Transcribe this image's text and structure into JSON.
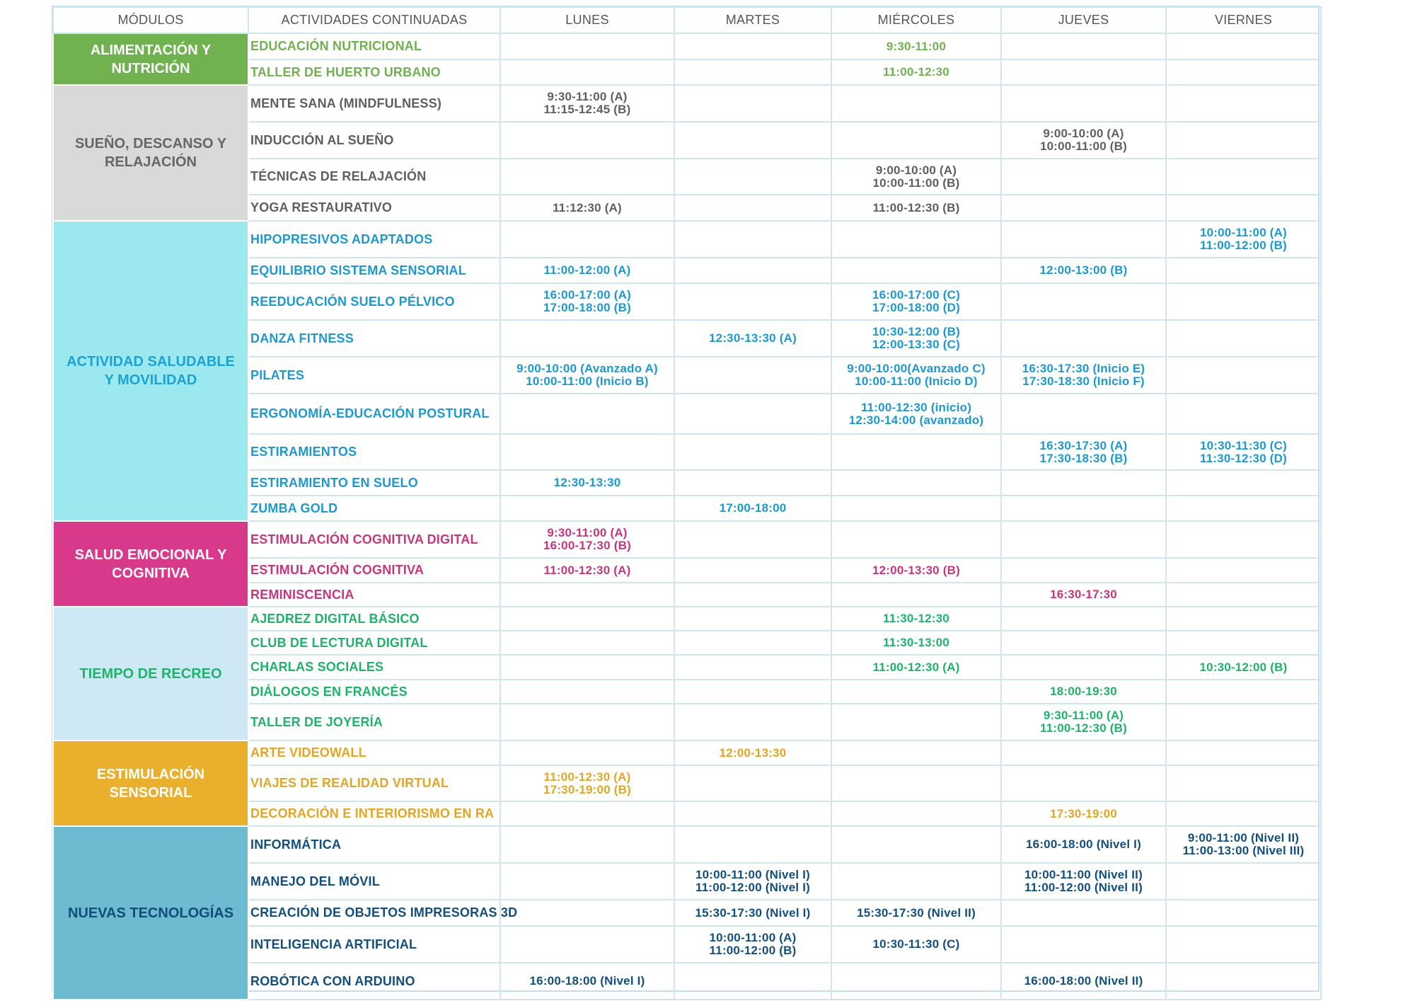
{
  "headers": [
    "MÓDULOS",
    "ACTIVIDADES CONTINUADAS",
    "LUNES",
    "MARTES",
    "MIÉRCOLES",
    "JUEVES",
    "VIERNES"
  ],
  "groups": [
    {
      "module": "ALIMENTACIÓN Y NUTRICIÓN",
      "module_bg": "#6fb24f",
      "module_fg": "#ffffff",
      "text_color": "#6fb24f",
      "rows": [
        {
          "name": "EDUCACIÓN NUTRICIONAL",
          "h": 37,
          "slots": [
            "",
            "",
            "9:30-11:00",
            "",
            ""
          ]
        },
        {
          "name": "TALLER DE HUERTO URBANO",
          "h": 36,
          "slots": [
            "",
            "",
            "11:00-12:30",
            "",
            ""
          ]
        }
      ]
    },
    {
      "module": "SUEÑO, DESCANSO Y RELAJACIÓN",
      "module_bg": "#d9d9d9",
      "module_fg": "#666666",
      "text_color": "#5f5f5f",
      "rows": [
        {
          "name": "MENTE SANA (MINDFULNESS)",
          "h": 52,
          "slots": [
            "9:30-11:00 (A)\n11:15-12:45 (B)",
            "",
            "",
            "",
            ""
          ]
        },
        {
          "name": "INDUCCIÓN AL SUEÑO",
          "h": 52,
          "slots": [
            "",
            "",
            "",
            "9:00-10:00 (A)\n10:00-11:00 (B)",
            ""
          ]
        },
        {
          "name": "TÉCNICAS DE RELAJACIÓN",
          "h": 51,
          "slots": [
            "",
            "",
            "9:00-10:00 (A)\n10:00-11:00 (B)",
            "",
            ""
          ]
        },
        {
          "name": "YOGA RESTAURATIVO",
          "h": 37,
          "slots": [
            "11:12:30 (A)",
            "",
            "11:00-12:30 (B)",
            "",
            ""
          ]
        }
      ]
    },
    {
      "module": "ACTIVIDAD SALUDABLE Y MOVILIDAD",
      "module_bg": "#9be9ee",
      "module_fg": "#1aa3d4",
      "text_color": "#1a9ad0",
      "rows": [
        {
          "name": "HIPOPRESIVOS ADAPTADOS",
          "h": 52,
          "slots": [
            "",
            "",
            "",
            "",
            "10:00-11:00 (A)\n11:00-12:00 (B)"
          ]
        },
        {
          "name": "EQUILIBRIO SISTEMA SENSORIAL",
          "h": 36,
          "slots": [
            "11:00-12:00 (A)",
            "",
            "",
            "12:00-13:00 (B)",
            ""
          ]
        },
        {
          "name": "REEDUCACIÓN SUELO PÉLVICO",
          "h": 52,
          "slots": [
            "16:00-17:00 (A)\n17:00-18:00 (B)",
            "",
            "16:00-17:00 (C)\n17:00-18:00 (D)",
            "",
            ""
          ]
        },
        {
          "name": "DANZA FITNESS",
          "h": 52,
          "slots": [
            "",
            "12:30-13:30 (A)",
            "10:30-12:00 (B)\n12:00-13:30 (C)",
            "",
            ""
          ]
        },
        {
          "name": "PILATES",
          "h": 52,
          "slots": [
            "9:00-10:00 (Avanzado A)\n10:00-11:00 (Inicio B)",
            "",
            "9:00-10:00(Avanzado C)\n10:00-11:00 (Inicio D)",
            "16:30-17:30 (Inicio E)\n17:30-18:30 (Inicio F)",
            ""
          ]
        },
        {
          "name": "ERGONOMÍA-EDUCACIÓN POSTURAL",
          "h": 57,
          "slots": [
            "",
            "",
            "11:00-12:30 (inicio)\n12:30-14:00 (avanzado)",
            "",
            ""
          ]
        },
        {
          "name": "ESTIRAMIENTOS",
          "h": 51,
          "slots": [
            "",
            "",
            "",
            "16:30-17:30 (A)\n17:30-18:30 (B)",
            "10:30-11:30 (C)\n11:30-12:30 (D)"
          ]
        },
        {
          "name": "ESTIRAMIENTO EN SUELO",
          "h": 36,
          "slots": [
            "12:30-13:30",
            "",
            "",
            "",
            ""
          ]
        },
        {
          "name": "ZUMBA GOLD",
          "h": 36,
          "slots": [
            "",
            "17:00-18:00",
            "",
            "",
            ""
          ]
        }
      ]
    },
    {
      "module": "SALUD EMOCIONAL Y COGNITIVA",
      "module_bg": "#d8398a",
      "module_fg": "#ffffff",
      "text_color": "#c8357f",
      "rows": [
        {
          "name": "ESTIMULACIÓN COGNITIVA DIGITAL",
          "h": 52,
          "slots": [
            "9:30-11:00 (A)\n16:00-17:30 (B)",
            "",
            "",
            "",
            ""
          ]
        },
        {
          "name": "ESTIMULACIÓN COGNITIVA",
          "h": 35,
          "slots": [
            "11:00-12:30 (A)",
            "",
            "12:00-13:30 (B)",
            "",
            ""
          ]
        },
        {
          "name": "REMINISCENCIA",
          "h": 34,
          "slots": [
            "",
            "",
            "",
            "16:30-17:30",
            ""
          ]
        }
      ]
    },
    {
      "module": "TIEMPO DE RECREO",
      "module_bg": "#cfe8f5",
      "module_fg": "#1db46a",
      "text_color": "#1db46a",
      "rows": [
        {
          "name": "AJEDREZ DIGITAL BÁSICO",
          "h": 34,
          "slots": [
            "",
            "",
            "11:30-12:30",
            "",
            ""
          ]
        },
        {
          "name": "CLUB DE LECTURA DIGITAL",
          "h": 34,
          "slots": [
            "",
            "",
            "11:30-13:00",
            "",
            ""
          ]
        },
        {
          "name": "CHARLAS SOCIALES",
          "h": 35,
          "slots": [
            "",
            "",
            "11:00-12:30 (A)",
            "",
            "10:30-12:00 (B)"
          ]
        },
        {
          "name": "DIÁLOGOS EN FRANCÉS",
          "h": 34,
          "slots": [
            "",
            "",
            "",
            "18:00-19:30",
            ""
          ]
        },
        {
          "name": "TALLER DE JOYERÍA",
          "h": 52,
          "slots": [
            "",
            "",
            "",
            "9:30-11:00 (A)\n11:00-12:30 (B)",
            ""
          ]
        }
      ]
    },
    {
      "module": "ESTIMULACIÓN SENSORIAL",
      "module_bg": "#ebb02b",
      "module_fg": "#ffffff",
      "text_color": "#e2a622",
      "rows": [
        {
          "name": "ARTE VIDEOWALL",
          "h": 35,
          "slots": [
            "",
            "12:00-13:30",
            "",
            "",
            ""
          ]
        },
        {
          "name": "VIAJES DE REALIDAD VIRTUAL",
          "h": 51,
          "slots": [
            "11:00-12:30 (A)\n17:30-19:00 (B)",
            "",
            "",
            "",
            ""
          ]
        },
        {
          "name": "DECORACIÓN E INTERIORISMO EN RA",
          "h": 35,
          "slots": [
            "",
            "",
            "",
            "17:30-19:00",
            ""
          ]
        }
      ]
    },
    {
      "module": "NUEVAS TECNOLOGÍAS",
      "module_bg": "#6dbbd0",
      "module_fg": "#114d7a",
      "text_color": "#124f7e",
      "rows": [
        {
          "name": "INFORMÁTICA",
          "h": 52,
          "slots": [
            "",
            "",
            "",
            "16:00-18:00 (Nivel I)",
            "9:00-11:00 (Nivel II)\n11:00-13:00 (Nivel III)"
          ]
        },
        {
          "name": "MANEJO DEL MÓVIL",
          "h": 52,
          "slots": [
            "",
            "10:00-11:00 (Nivel I)\n11:00-12:00 (Nivel I)",
            "",
            "10:00-11:00 (Nivel II)\n11:00-12:00 (Nivel II)",
            ""
          ]
        },
        {
          "name": "CREACIÓN DE OBJETOS IMPRESORAS 3D",
          "h": 37,
          "slots": [
            "",
            "15:30-17:30 (Nivel I)",
            "15:30-17:30 (Nivel II)",
            "",
            ""
          ]
        },
        {
          "name": "INTELIGENCIA ARTIFICIAL",
          "h": 52,
          "slots": [
            "",
            "10:00-11:00 (A)\n11:00-12:00 (B)",
            "10:30-11:30 (C)",
            "",
            ""
          ]
        },
        {
          "name": "ROBÓTICA CON ARDUINO",
          "h": 52,
          "slots": [
            "16:00-18:00 (Nivel I)",
            "",
            "",
            "16:00-18:00 (Nivel II)",
            ""
          ]
        }
      ]
    }
  ]
}
